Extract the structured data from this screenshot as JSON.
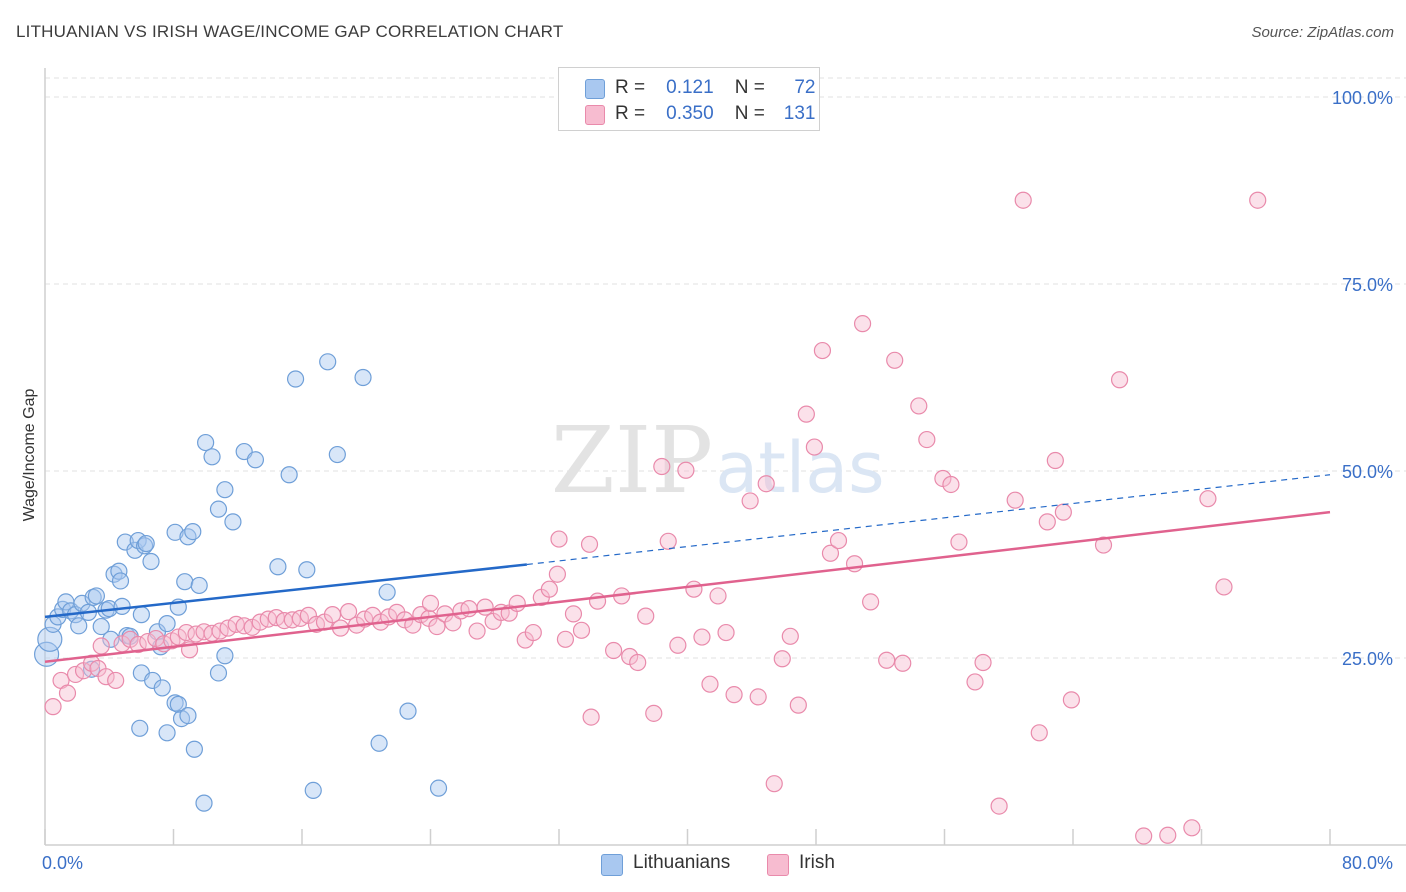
{
  "header": {
    "title": "LITHUANIAN VS IRISH WAGE/INCOME GAP CORRELATION CHART",
    "source": "Source: ZipAtlas.com"
  },
  "watermark": {
    "zip": "ZIP",
    "atlas": "atlas"
  },
  "legend": {
    "rows": [
      {
        "r_label": "R =",
        "r_value": "0.121",
        "n_label": "N =",
        "n_value": "72",
        "color": "#a9c8f0",
        "border": "#6f9fd8"
      },
      {
        "r_label": "R =",
        "r_value": "0.350",
        "n_label": "N =",
        "n_value": "131",
        "color": "#f7bcd0",
        "border": "#e98aab"
      }
    ]
  },
  "bottom_legend": [
    {
      "label": "Lithuanians",
      "color": "#a9c8f0",
      "border": "#6f9fd8"
    },
    {
      "label": "Irish",
      "color": "#f7bcd0",
      "border": "#e98aab"
    }
  ],
  "chart_data": {
    "type": "scatter",
    "title": "LITHUANIAN VS IRISH WAGE/INCOME GAP CORRELATION CHART",
    "xlabel": "",
    "ylabel": "Wage/Income Gap",
    "xlim": [
      0,
      80
    ],
    "ylim": [
      0,
      100
    ],
    "x_tick_labels": [
      "0.0%",
      "80.0%"
    ],
    "y_tick_labels": [
      "25.0%",
      "50.0%",
      "75.0%",
      "100.0%"
    ],
    "y_ticks": [
      25,
      50,
      75,
      100
    ],
    "grid": true,
    "series": [
      {
        "name": "Lithuanians",
        "color": "#6f9fd8",
        "fill": "#a9c8f0",
        "line_color": "#2469c8",
        "trend": {
          "x_solid_end": 30,
          "x_dash_end": 80,
          "y_at_0": 30.5,
          "y_at_30": 37.5,
          "y_at_80": 49.5
        },
        "points": [
          [
            0.1,
            25.5
          ],
          [
            0.3,
            27.5
          ],
          [
            0.5,
            29.5
          ],
          [
            0.8,
            30.5
          ],
          [
            1.1,
            31.5
          ],
          [
            1.3,
            32.5
          ],
          [
            1.6,
            31.3
          ],
          [
            1.9,
            30.8
          ],
          [
            2.1,
            29.3
          ],
          [
            2.3,
            32.3
          ],
          [
            2.7,
            31.1
          ],
          [
            3.0,
            33.1
          ],
          [
            3.2,
            33.3
          ],
          [
            3.5,
            29.2
          ],
          [
            3.8,
            31.4
          ],
          [
            4.0,
            31.6
          ],
          [
            4.1,
            27.5
          ],
          [
            4.3,
            36.2
          ],
          [
            4.6,
            36.6
          ],
          [
            4.7,
            35.3
          ],
          [
            4.8,
            31.9
          ],
          [
            5.0,
            40.5
          ],
          [
            5.1,
            28.0
          ],
          [
            5.3,
            27.9
          ],
          [
            5.6,
            39.4
          ],
          [
            5.8,
            40.7
          ],
          [
            6.0,
            30.8
          ],
          [
            6.2,
            40.0
          ],
          [
            6.3,
            40.3
          ],
          [
            6.6,
            37.9
          ],
          [
            7.0,
            28.5
          ],
          [
            7.2,
            26.5
          ],
          [
            7.6,
            29.6
          ],
          [
            8.1,
            41.8
          ],
          [
            8.3,
            31.8
          ],
          [
            8.7,
            35.2
          ],
          [
            8.9,
            41.2
          ],
          [
            9.2,
            41.9
          ],
          [
            9.6,
            34.7
          ],
          [
            10.0,
            53.8
          ],
          [
            10.4,
            51.9
          ],
          [
            10.8,
            44.9
          ],
          [
            11.2,
            47.5
          ],
          [
            11.7,
            43.2
          ],
          [
            12.4,
            52.6
          ],
          [
            13.1,
            51.5
          ],
          [
            14.5,
            37.2
          ],
          [
            15.2,
            49.5
          ],
          [
            16.3,
            36.8
          ],
          [
            15.6,
            62.3
          ],
          [
            17.6,
            64.6
          ],
          [
            18.2,
            52.2
          ],
          [
            19.8,
            62.5
          ],
          [
            21.3,
            33.8
          ],
          [
            6.0,
            23.0
          ],
          [
            6.7,
            22.0
          ],
          [
            7.3,
            21.0
          ],
          [
            8.1,
            19.0
          ],
          [
            8.3,
            18.8
          ],
          [
            8.5,
            16.9
          ],
          [
            8.9,
            17.3
          ],
          [
            9.3,
            12.8
          ],
          [
            9.9,
            5.6
          ],
          [
            10.8,
            23.0
          ],
          [
            11.2,
            25.3
          ],
          [
            5.9,
            15.6
          ],
          [
            7.6,
            15.0
          ],
          [
            16.7,
            7.3
          ],
          [
            20.8,
            13.6
          ],
          [
            22.6,
            17.9
          ],
          [
            24.5,
            7.6
          ],
          [
            2.9,
            23.5
          ]
        ]
      },
      {
        "name": "Irish",
        "color": "#e98aab",
        "fill": "#f7bcd0",
        "line_color": "#e0628e",
        "trend": {
          "x_solid_end": 80,
          "y_at_0": 24.5,
          "y_at_80": 44.5
        },
        "points": [
          [
            0.5,
            18.5
          ],
          [
            1.0,
            22.0
          ],
          [
            1.4,
            20.3
          ],
          [
            1.9,
            22.8
          ],
          [
            2.4,
            23.3
          ],
          [
            2.9,
            24.3
          ],
          [
            3.3,
            23.6
          ],
          [
            3.8,
            22.5
          ],
          [
            4.4,
            22.0
          ],
          [
            4.8,
            26.9
          ],
          [
            5.3,
            27.5
          ],
          [
            5.8,
            26.8
          ],
          [
            6.4,
            27.2
          ],
          [
            6.9,
            27.6
          ],
          [
            7.4,
            26.9
          ],
          [
            7.9,
            27.3
          ],
          [
            8.3,
            27.8
          ],
          [
            8.8,
            28.4
          ],
          [
            9.4,
            28.2
          ],
          [
            9.9,
            28.5
          ],
          [
            10.4,
            28.3
          ],
          [
            10.9,
            28.6
          ],
          [
            11.4,
            29.0
          ],
          [
            11.9,
            29.5
          ],
          [
            12.4,
            29.3
          ],
          [
            12.9,
            29.1
          ],
          [
            13.4,
            29.8
          ],
          [
            13.9,
            30.2
          ],
          [
            14.4,
            30.4
          ],
          [
            14.9,
            30.0
          ],
          [
            15.4,
            30.1
          ],
          [
            15.9,
            30.3
          ],
          [
            16.4,
            30.7
          ],
          [
            16.9,
            29.5
          ],
          [
            17.4,
            29.8
          ],
          [
            17.9,
            30.8
          ],
          [
            18.4,
            29.0
          ],
          [
            18.9,
            31.2
          ],
          [
            19.4,
            29.4
          ],
          [
            19.9,
            30.2
          ],
          [
            20.4,
            30.7
          ],
          [
            20.9,
            29.8
          ],
          [
            21.4,
            30.5
          ],
          [
            21.9,
            31.1
          ],
          [
            22.4,
            30.1
          ],
          [
            22.9,
            29.4
          ],
          [
            23.4,
            30.8
          ],
          [
            23.9,
            30.3
          ],
          [
            24.4,
            29.2
          ],
          [
            24.9,
            30.9
          ],
          [
            25.4,
            29.7
          ],
          [
            25.9,
            31.3
          ],
          [
            26.4,
            31.6
          ],
          [
            26.9,
            28.6
          ],
          [
            27.4,
            31.8
          ],
          [
            27.9,
            29.9
          ],
          [
            28.4,
            31.1
          ],
          [
            28.9,
            31.0
          ],
          [
            29.4,
            32.3
          ],
          [
            29.9,
            27.4
          ],
          [
            30.4,
            28.4
          ],
          [
            30.9,
            33.1
          ],
          [
            31.4,
            34.2
          ],
          [
            31.9,
            36.2
          ],
          [
            32.4,
            27.5
          ],
          [
            32.9,
            30.9
          ],
          [
            33.4,
            28.7
          ],
          [
            33.9,
            40.2
          ],
          [
            34.4,
            32.6
          ],
          [
            35.4,
            26.0
          ],
          [
            35.9,
            33.3
          ],
          [
            36.4,
            25.2
          ],
          [
            36.9,
            24.4
          ],
          [
            37.4,
            30.6
          ],
          [
            37.9,
            17.6
          ],
          [
            38.4,
            50.6
          ],
          [
            39.4,
            26.7
          ],
          [
            39.9,
            50.1
          ],
          [
            40.4,
            34.2
          ],
          [
            40.9,
            27.8
          ],
          [
            41.4,
            21.5
          ],
          [
            41.9,
            33.3
          ],
          [
            42.4,
            28.4
          ],
          [
            42.9,
            20.1
          ],
          [
            43.9,
            46.0
          ],
          [
            44.4,
            19.8
          ],
          [
            44.9,
            48.3
          ],
          [
            45.4,
            8.2
          ],
          [
            45.9,
            24.9
          ],
          [
            46.4,
            27.9
          ],
          [
            46.9,
            18.7
          ],
          [
            47.4,
            57.6
          ],
          [
            47.9,
            53.2
          ],
          [
            48.4,
            66.1
          ],
          [
            48.9,
            39.0
          ],
          [
            49.4,
            40.7
          ],
          [
            50.4,
            37.6
          ],
          [
            50.9,
            69.7
          ],
          [
            51.4,
            32.5
          ],
          [
            52.4,
            24.7
          ],
          [
            52.9,
            64.8
          ],
          [
            53.4,
            24.3
          ],
          [
            54.4,
            58.7
          ],
          [
            54.9,
            54.2
          ],
          [
            55.9,
            49.0
          ],
          [
            56.4,
            48.2
          ],
          [
            56.9,
            40.5
          ],
          [
            57.9,
            21.8
          ],
          [
            58.4,
            24.4
          ],
          [
            59.4,
            5.2
          ],
          [
            60.4,
            46.1
          ],
          [
            60.9,
            86.2
          ],
          [
            61.9,
            15.0
          ],
          [
            62.4,
            43.2
          ],
          [
            62.9,
            51.4
          ],
          [
            63.4,
            44.5
          ],
          [
            63.9,
            19.4
          ],
          [
            65.9,
            40.1
          ],
          [
            66.9,
            62.2
          ],
          [
            68.4,
            1.2
          ],
          [
            69.9,
            1.3
          ],
          [
            71.4,
            2.3
          ],
          [
            72.4,
            46.3
          ],
          [
            73.4,
            34.5
          ],
          [
            75.5,
            86.2
          ],
          [
            38.8,
            40.6
          ],
          [
            32.0,
            40.9
          ],
          [
            24.0,
            32.3
          ],
          [
            9.0,
            26.1
          ],
          [
            3.5,
            26.6
          ],
          [
            34.0,
            17.1
          ]
        ]
      }
    ]
  }
}
